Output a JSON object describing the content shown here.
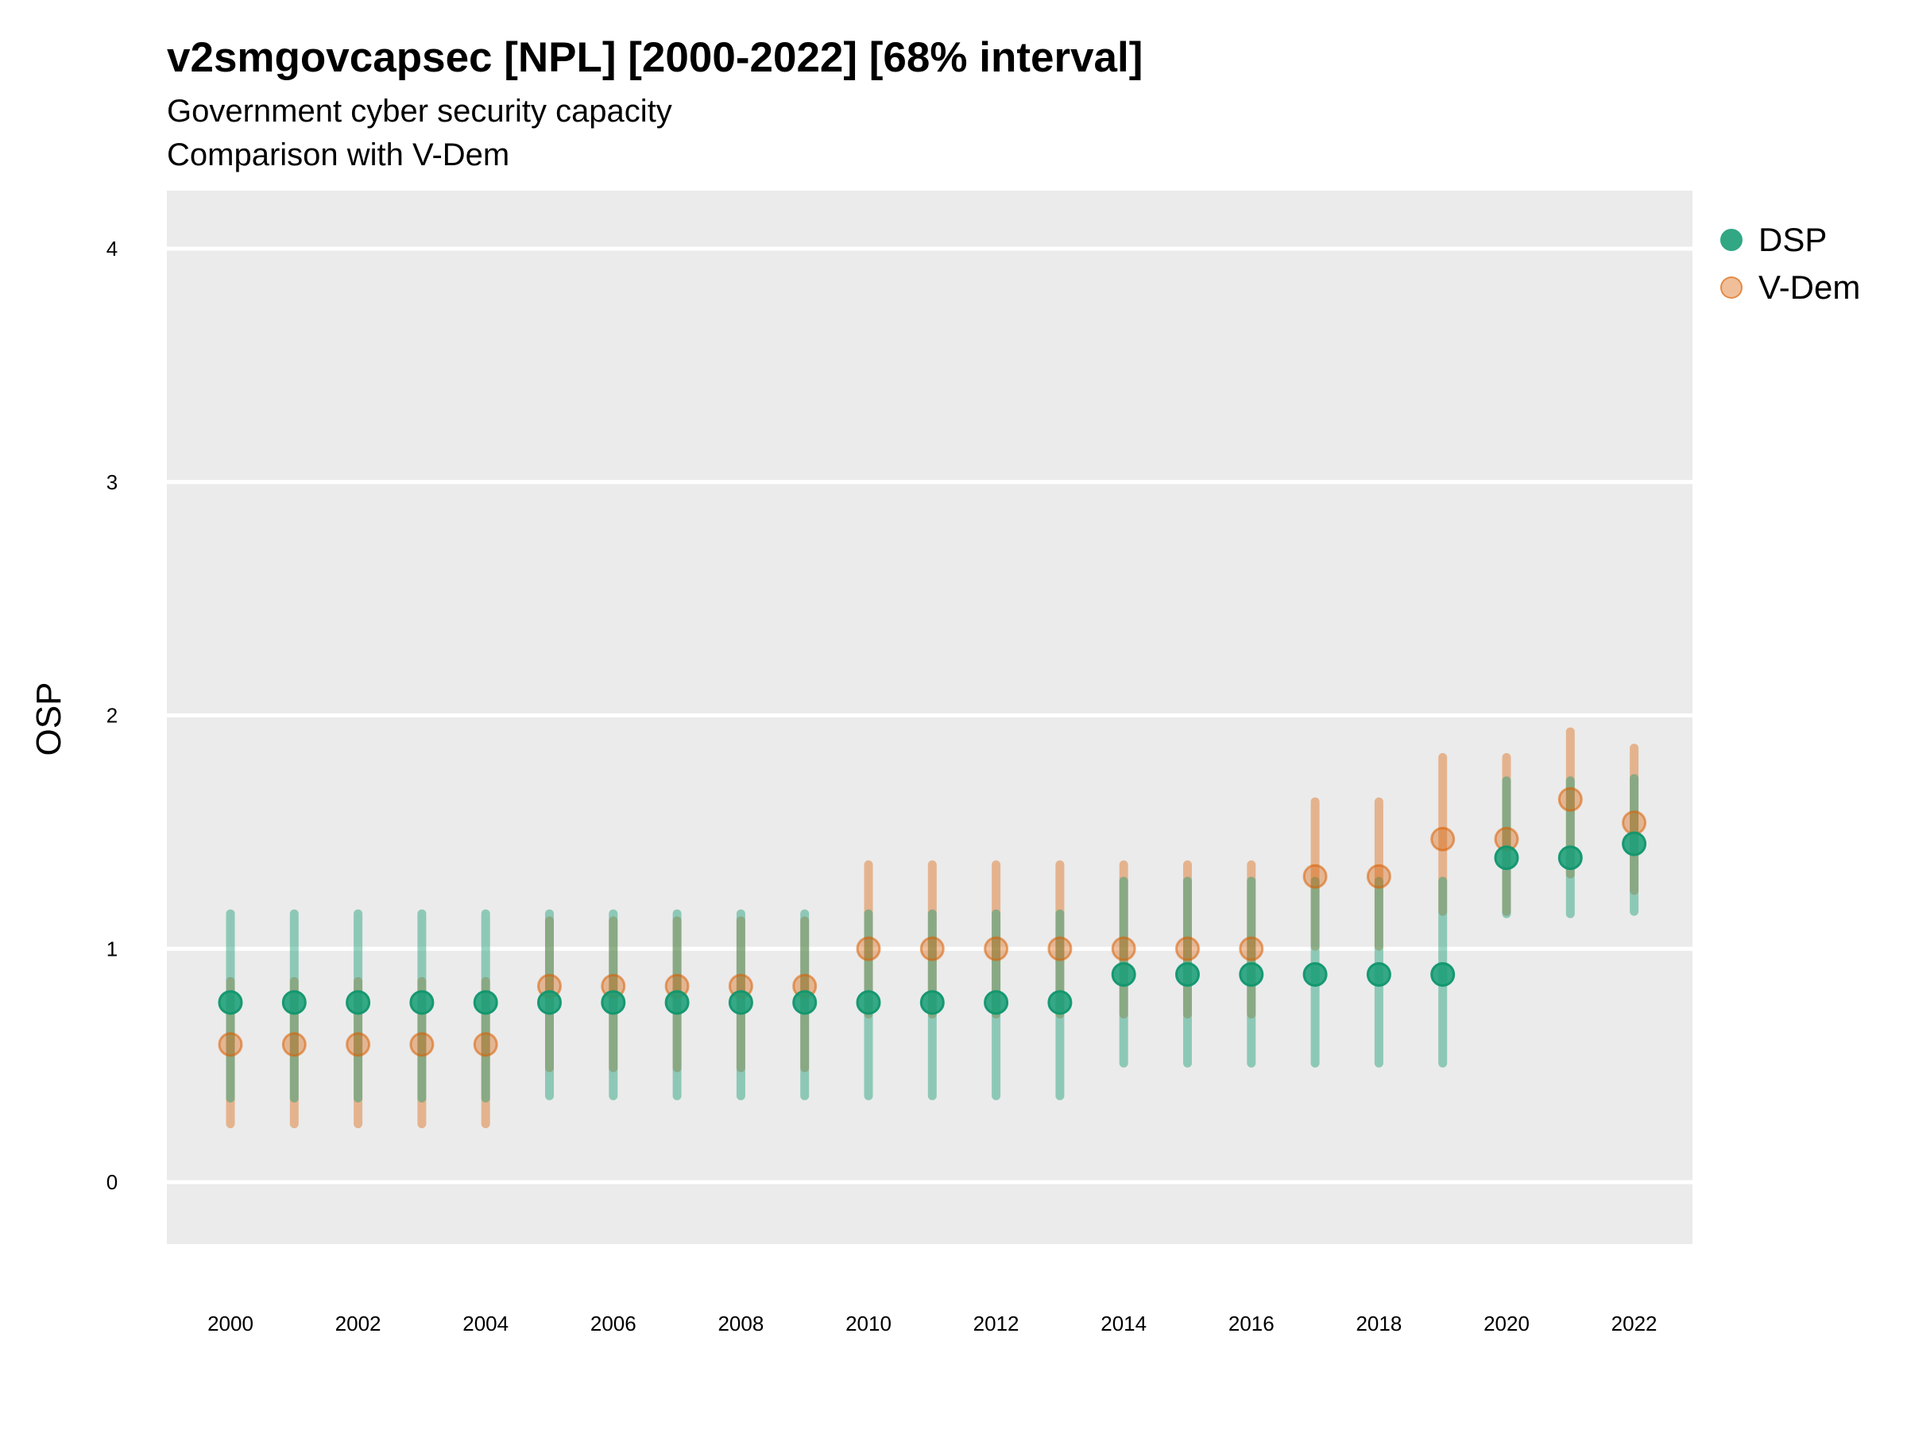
{
  "chart_data": {
    "type": "scatter",
    "title": "v2smgovcapsec [NPL] [2000-2022] [68% interval]",
    "subtitle": "Government cyber security capacity",
    "caption_line": "Comparison with V-Dem",
    "xlabel": "",
    "ylabel": "OSP",
    "ylim": [
      -0.25,
      4.25
    ],
    "xlim": [
      1999,
      2023
    ],
    "y_ticks": [
      "0",
      "1",
      "2",
      "3",
      "4"
    ],
    "x_ticks": [
      "2000",
      "2002",
      "2004",
      "2006",
      "2008",
      "2010",
      "2012",
      "2014",
      "2016",
      "2018",
      "2020",
      "2022"
    ],
    "grid": true,
    "legend_position": "top-right",
    "x": [
      2000,
      2001,
      2002,
      2003,
      2004,
      2005,
      2006,
      2007,
      2008,
      2009,
      2010,
      2011,
      2012,
      2013,
      2014,
      2015,
      2016,
      2017,
      2018,
      2019,
      2020,
      2021,
      2022
    ],
    "series": [
      {
        "name": "DSP",
        "color": "#1b9e77",
        "values": [
          0.77,
          0.77,
          0.77,
          0.77,
          0.77,
          0.77,
          0.77,
          0.77,
          0.77,
          0.77,
          0.77,
          0.77,
          0.77,
          0.77,
          0.89,
          0.89,
          0.89,
          0.89,
          0.89,
          0.89,
          1.39,
          1.39,
          1.45
        ],
        "lower": [
          0.36,
          0.36,
          0.36,
          0.36,
          0.36,
          0.37,
          0.37,
          0.37,
          0.37,
          0.37,
          0.37,
          0.37,
          0.37,
          0.37,
          0.51,
          0.51,
          0.51,
          0.51,
          0.51,
          0.51,
          1.15,
          1.15,
          1.16
        ],
        "upper": [
          1.15,
          1.15,
          1.15,
          1.15,
          1.15,
          1.15,
          1.15,
          1.15,
          1.15,
          1.15,
          1.15,
          1.15,
          1.15,
          1.15,
          1.29,
          1.29,
          1.29,
          1.29,
          1.29,
          1.29,
          1.72,
          1.72,
          1.73
        ]
      },
      {
        "name": "V-Dem",
        "color": "#d95f02",
        "values": [
          0.59,
          0.59,
          0.59,
          0.59,
          0.59,
          0.84,
          0.84,
          0.84,
          0.84,
          0.84,
          1.0,
          1.0,
          1.0,
          1.0,
          1.0,
          1.0,
          1.0,
          1.31,
          1.31,
          1.47,
          1.47,
          1.64,
          1.54
        ],
        "lower": [
          0.25,
          0.25,
          0.25,
          0.25,
          0.25,
          0.49,
          0.49,
          0.49,
          0.49,
          0.49,
          0.72,
          0.72,
          0.72,
          0.72,
          0.72,
          0.72,
          0.72,
          1.01,
          1.01,
          1.16,
          1.16,
          1.32,
          1.25
        ],
        "upper": [
          0.86,
          0.86,
          0.86,
          0.86,
          0.86,
          1.12,
          1.12,
          1.12,
          1.12,
          1.12,
          1.36,
          1.36,
          1.36,
          1.36,
          1.36,
          1.36,
          1.36,
          1.63,
          1.63,
          1.82,
          1.82,
          1.93,
          1.86
        ]
      }
    ]
  },
  "legend": {
    "items": [
      {
        "label": "DSP",
        "color": "#1b9e77"
      },
      {
        "label": "V-Dem",
        "color": "#d95f02"
      }
    ]
  }
}
